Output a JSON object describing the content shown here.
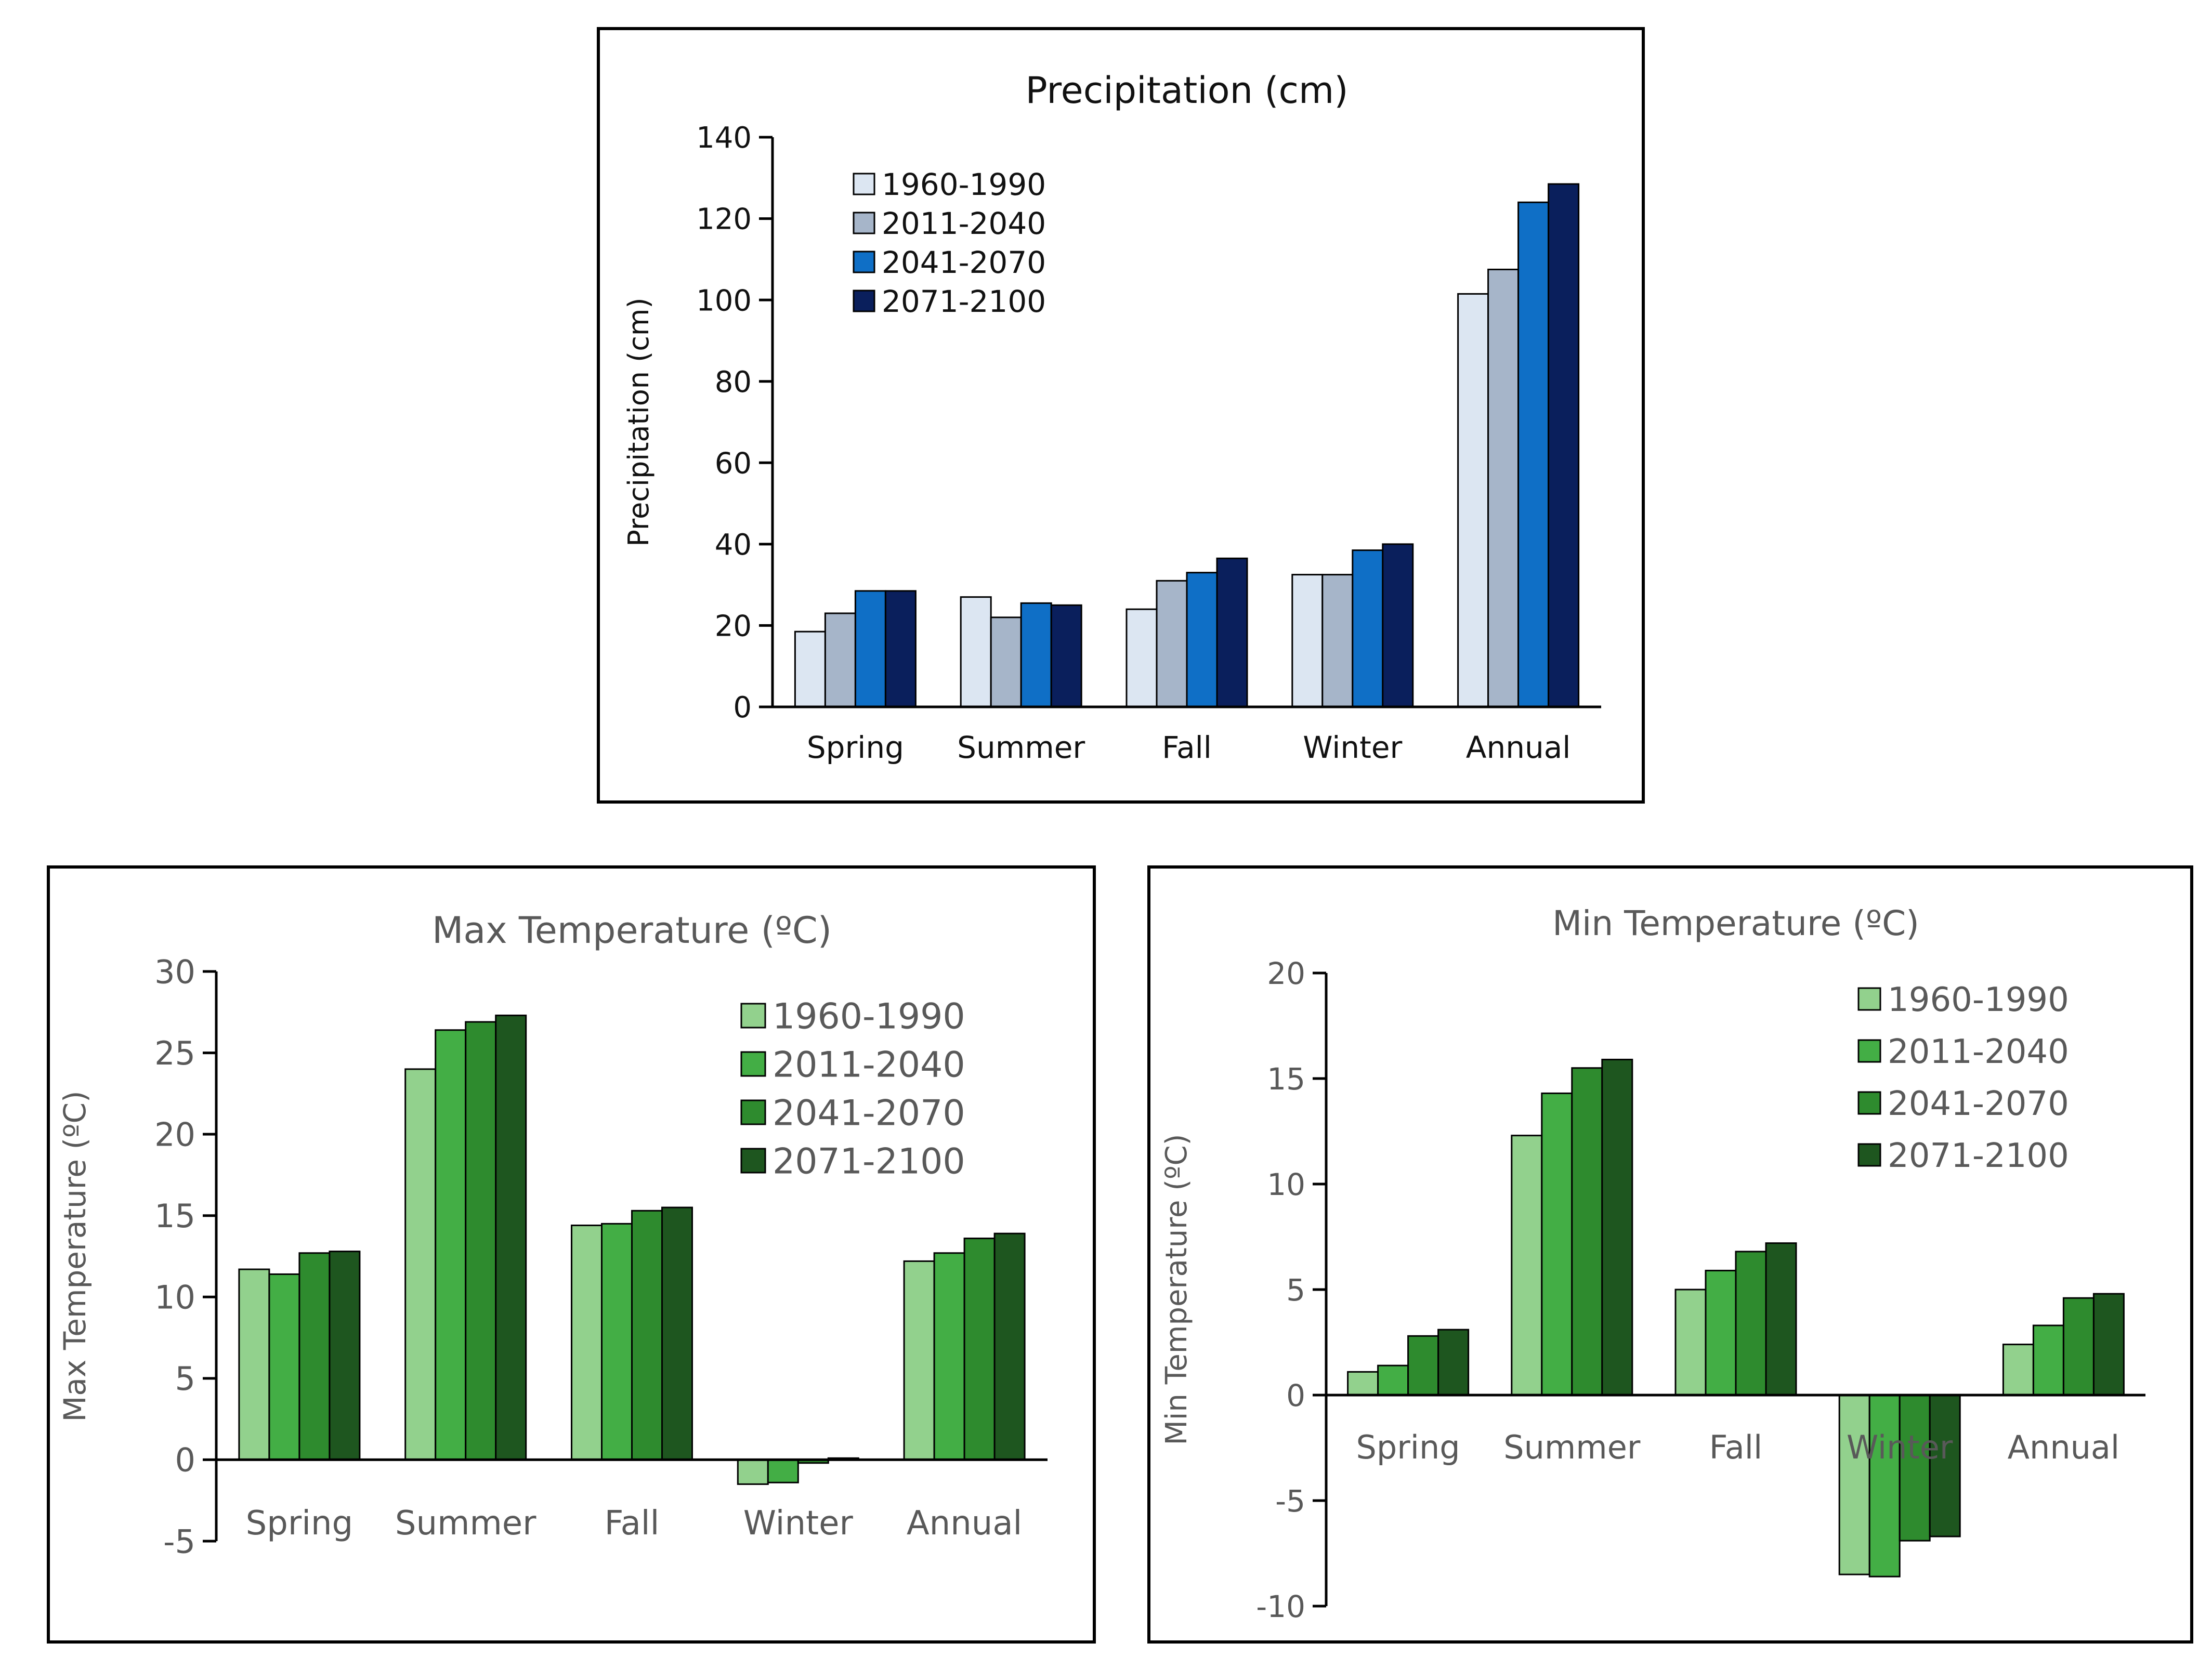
{
  "chart_data": [
    {
      "type": "bar",
      "title": "Precipitation (cm)",
      "xlabel": "",
      "ylabel": "Precipitation (cm)",
      "ylim": [
        0,
        140
      ],
      "yticks": [
        0,
        20,
        40,
        60,
        80,
        100,
        120,
        140
      ],
      "categories": [
        "Spring",
        "Summer",
        "Fall",
        "Winter",
        "Annual"
      ],
      "legend_position": "top-left",
      "grid": false,
      "series": [
        {
          "name": "1960-1990",
          "color": "#dce6f2",
          "values": [
            18.5,
            27,
            24,
            32.5,
            101.5
          ]
        },
        {
          "name": "2011-2040",
          "color": "#a6b5c9",
          "values": [
            23,
            22,
            31,
            32.5,
            107.5
          ]
        },
        {
          "name": "2041-2070",
          "color": "#0f6fc6",
          "values": [
            28.5,
            25.5,
            33,
            38.5,
            124
          ]
        },
        {
          "name": "2071-2100",
          "color": "#0a1f5c",
          "values": [
            28.5,
            25,
            36.5,
            40,
            128.5
          ]
        }
      ]
    },
    {
      "type": "bar",
      "title": "Max Temperature (ºC)",
      "xlabel": "",
      "ylabel": "Max Temperature (ºC)",
      "ylim": [
        -5,
        30
      ],
      "yticks": [
        -5,
        0,
        5,
        10,
        15,
        20,
        25,
        30
      ],
      "categories": [
        "Spring",
        "Summer",
        "Fall",
        "Winter",
        "Annual"
      ],
      "legend_position": "top-right",
      "grid": false,
      "series": [
        {
          "name": "1960-1990",
          "color": "#92d18d",
          "values": [
            11.7,
            24,
            14.4,
            -1.5,
            12.2
          ]
        },
        {
          "name": "2011-2040",
          "color": "#43ae45",
          "values": [
            11.4,
            26.4,
            14.5,
            -1.4,
            12.7
          ]
        },
        {
          "name": "2041-2070",
          "color": "#2e8b2e",
          "values": [
            12.7,
            26.9,
            15.3,
            -0.2,
            13.6
          ]
        },
        {
          "name": "2071-2100",
          "color": "#1e561f",
          "values": [
            12.8,
            27.3,
            15.5,
            0.1,
            13.9
          ]
        }
      ]
    },
    {
      "type": "bar",
      "title": "Min Temperature (ºC)",
      "xlabel": "",
      "ylabel": "Min Temperature (ºC)",
      "ylim": [
        -10,
        20
      ],
      "yticks": [
        -10,
        -5,
        0,
        5,
        10,
        15,
        20
      ],
      "categories": [
        "Spring",
        "Summer",
        "Fall",
        "Winter",
        "Annual"
      ],
      "legend_position": "top-right",
      "grid": false,
      "series": [
        {
          "name": "1960-1990",
          "color": "#92d18d",
          "values": [
            1.1,
            12.3,
            5.0,
            -8.5,
            2.4
          ]
        },
        {
          "name": "2011-2040",
          "color": "#43ae45",
          "values": [
            1.4,
            14.3,
            5.9,
            -8.6,
            3.3
          ]
        },
        {
          "name": "2041-2070",
          "color": "#2e8b2e",
          "values": [
            2.8,
            15.5,
            6.8,
            -6.9,
            4.6
          ]
        },
        {
          "name": "2071-2100",
          "color": "#1e561f",
          "values": [
            3.1,
            15.9,
            7.2,
            -6.7,
            4.8
          ]
        }
      ]
    }
  ]
}
